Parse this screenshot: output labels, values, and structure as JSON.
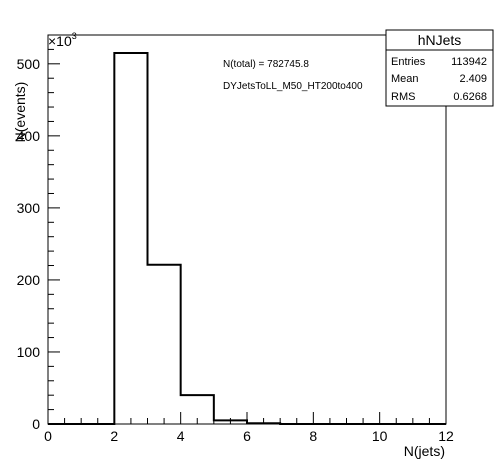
{
  "chart_data": {
    "type": "bar",
    "histogram_name": "hNJets",
    "xlabel": "N(jets)",
    "ylabel": "N(events)",
    "y_exponent_label": "×10³",
    "xlim": [
      0,
      12
    ],
    "ylim": [
      0,
      540000
    ],
    "x_ticks": [
      "0",
      "2",
      "4",
      "6",
      "8",
      "10",
      "12"
    ],
    "y_ticks": [
      "0",
      "100",
      "200",
      "300",
      "400",
      "500"
    ],
    "bin_edges": [
      0,
      1,
      2,
      3,
      4,
      5,
      6,
      7,
      8,
      9,
      10,
      11,
      12
    ],
    "values": [
      0,
      0,
      515000,
      221000,
      40000,
      5000,
      1000,
      0,
      0,
      0,
      0,
      0
    ],
    "annotations": [
      "N(total) = 782745.8",
      "DYJetsToLL_M50_HT200to400"
    ],
    "grid": false,
    "stats_box": {
      "title": "hNJets",
      "rows": [
        {
          "label": "Entries",
          "value": "113942"
        },
        {
          "label": "Mean",
          "value": "2.409"
        },
        {
          "label": "RMS",
          "value": "0.6268"
        }
      ],
      "position": "top-right"
    }
  }
}
